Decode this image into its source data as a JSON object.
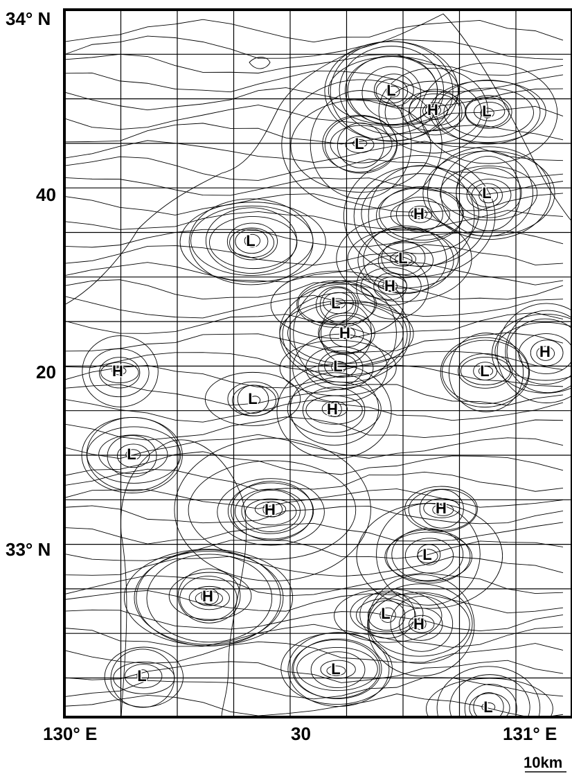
{
  "map": {
    "lat_labels": [
      "34° N",
      "40",
      "20",
      "33° N"
    ],
    "lon_labels": [
      "130° E",
      "30",
      "131° E"
    ],
    "scale_label": "10km",
    "markers": [
      "H",
      "L",
      "L",
      "L",
      "L",
      "H",
      "L",
      "L",
      "H",
      "L",
      "H",
      "H",
      "L",
      "L",
      "H",
      "L",
      "H",
      "L",
      "H",
      "H",
      "L",
      "H",
      "L",
      "H",
      "L",
      "L",
      "L"
    ]
  }
}
